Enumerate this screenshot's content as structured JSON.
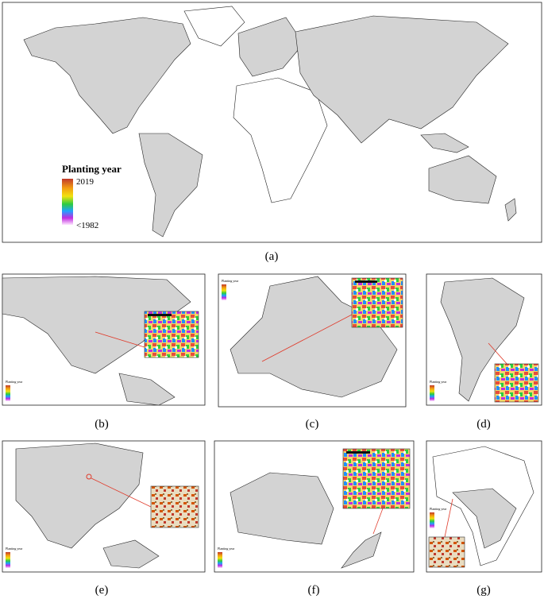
{
  "legend": {
    "title": "Planting year",
    "max": "2019",
    "min": "<1982"
  },
  "panels": [
    {
      "label": "(a)"
    },
    {
      "label": "(b)"
    },
    {
      "label": "(c)"
    },
    {
      "label": "(d)"
    },
    {
      "label": "(e)"
    },
    {
      "label": "(f)"
    },
    {
      "label": "(g)"
    }
  ]
}
